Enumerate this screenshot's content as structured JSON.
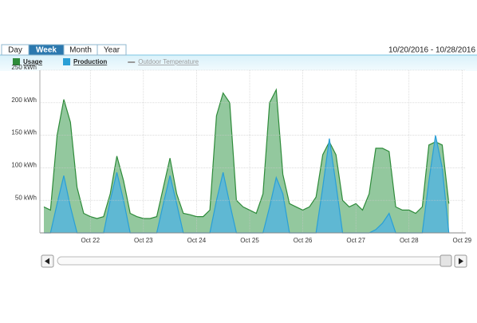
{
  "tabs": [
    "Day",
    "Week",
    "Month",
    "Year"
  ],
  "selected_tab": 1,
  "date_range": "10/20/2016 - 10/28/2016",
  "extra_legend": {
    "name": "Outdoor Temperature",
    "color": "#9a9a9a"
  },
  "chart_data": {
    "type": "area",
    "x": [
      21.125,
      21.25,
      21.375,
      21.5,
      21.625,
      21.75,
      21.875,
      22,
      22.125,
      22.25,
      22.375,
      22.5,
      22.625,
      22.75,
      22.875,
      23,
      23.125,
      23.25,
      23.375,
      23.5,
      23.625,
      23.75,
      23.875,
      24,
      24.125,
      24.25,
      24.375,
      24.5,
      24.625,
      24.75,
      24.875,
      25,
      25.125,
      25.25,
      25.375,
      25.5,
      25.625,
      25.75,
      25.875,
      26,
      26.125,
      26.25,
      26.375,
      26.5,
      26.625,
      26.75,
      26.875,
      27,
      27.125,
      27.25,
      27.375,
      27.5,
      27.625,
      27.75,
      27.875,
      28,
      28.125,
      28.25,
      28.375,
      28.5,
      28.625,
      28.75
    ],
    "series": [
      {
        "name": "Usage",
        "color": "#2e8b3a",
        "fill": "#93c89e",
        "values": [
          40,
          35,
          150,
          205,
          170,
          70,
          30,
          25,
          22,
          25,
          60,
          118,
          80,
          30,
          25,
          22,
          22,
          25,
          70,
          115,
          60,
          30,
          28,
          25,
          25,
          35,
          180,
          215,
          200,
          50,
          40,
          35,
          30,
          60,
          200,
          220,
          90,
          45,
          40,
          35,
          40,
          55,
          120,
          140,
          120,
          50,
          40,
          45,
          35,
          60,
          130,
          130,
          125,
          40,
          35,
          35,
          30,
          40,
          135,
          140,
          135,
          45
        ]
      },
      {
        "name": "Production",
        "color": "#2a9fd6",
        "fill": "#5ab6d8",
        "values": [
          0,
          0,
          45,
          88,
          40,
          0,
          0,
          0,
          0,
          0,
          50,
          93,
          50,
          0,
          0,
          0,
          0,
          0,
          45,
          88,
          45,
          0,
          0,
          0,
          0,
          0,
          50,
          93,
          45,
          0,
          0,
          0,
          0,
          0,
          40,
          85,
          60,
          0,
          0,
          0,
          0,
          0,
          70,
          145,
          75,
          0,
          0,
          0,
          0,
          0,
          5,
          15,
          30,
          0,
          0,
          0,
          0,
          0,
          80,
          150,
          100,
          0
        ]
      }
    ],
    "xlim": [
      21.05,
      29.07
    ],
    "xticks": [
      {
        "value": 22,
        "label": "Oct 22"
      },
      {
        "value": 23,
        "label": "Oct 23"
      },
      {
        "value": 24,
        "label": "Oct 24"
      },
      {
        "value": 25,
        "label": "Oct 25"
      },
      {
        "value": 26,
        "label": "Oct 26"
      },
      {
        "value": 27,
        "label": "Oct 27"
      },
      {
        "value": 28,
        "label": "Oct 28"
      },
      {
        "value": 29,
        "label": "Oct 29"
      }
    ],
    "ylim": [
      0,
      250
    ],
    "yticks": [
      {
        "value": 50,
        "label": "50 kWh"
      },
      {
        "value": 100,
        "label": "100 kWh"
      },
      {
        "value": 150,
        "label": "150 kWh"
      },
      {
        "value": 200,
        "label": "200 kWh"
      },
      {
        "value": 250,
        "label": "250 kWh"
      }
    ],
    "grid": true
  }
}
